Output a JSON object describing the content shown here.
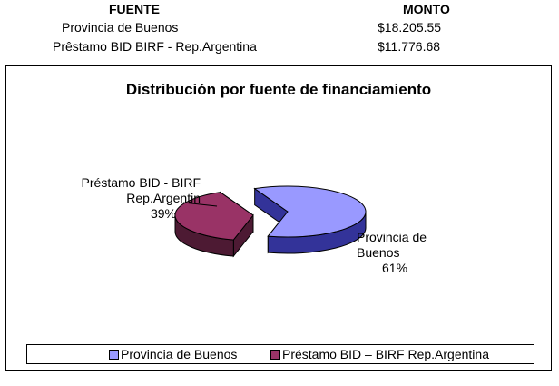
{
  "table": {
    "headers": {
      "source": "FUENTE",
      "amount": "MONTO"
    },
    "rows": [
      {
        "source": "Provincia de Buenos",
        "amount": "$18.205.55"
      },
      {
        "source": "Prêstamo BID BIRF - Rep.Argentina",
        "amount": "$11.776.68"
      }
    ]
  },
  "chart_data": {
    "type": "pie",
    "title": "Distribución  por fuente de financiamiento",
    "slices": [
      {
        "name": "Provincia de Buenos",
        "label": "Provincia de Buenos",
        "percent_label": "61%",
        "value": 61,
        "color": "#9999ff",
        "side_color": "#333399"
      },
      {
        "name": "Préstamo BID – BIRF Rep.Argentina",
        "label": "Préstamo BID - BIRF Rep.Argentin",
        "percent_label": "39%",
        "value": 39,
        "color": "#993366",
        "side_color": "#4d1a33"
      }
    ],
    "legend_position": "bottom",
    "three_d": true
  }
}
